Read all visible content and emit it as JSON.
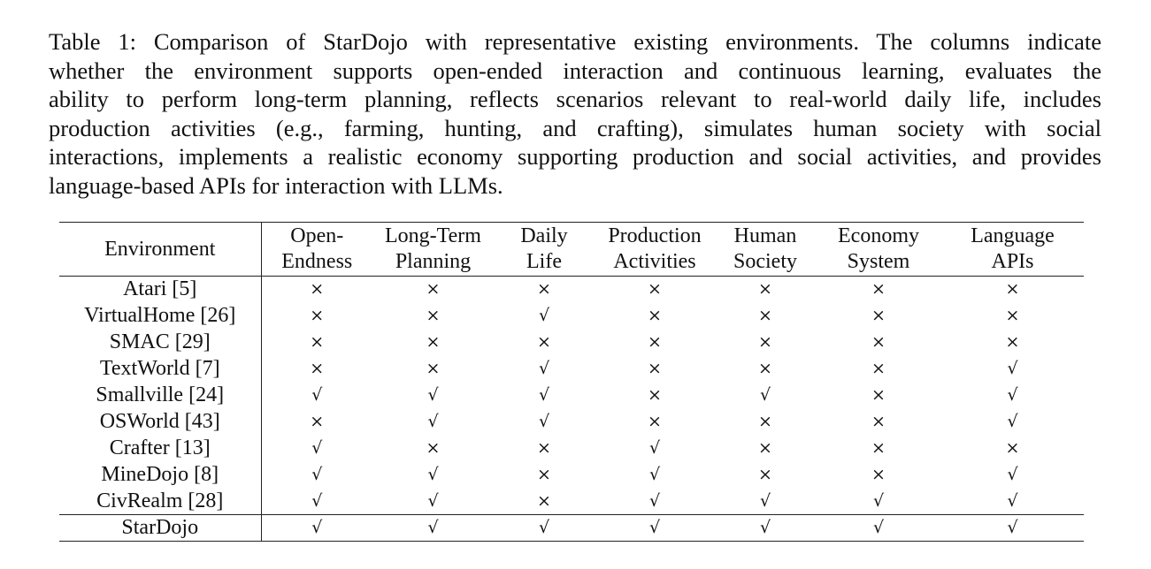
{
  "caption": {
    "lines": [
      "Table 1: Comparison of StarDojo with representative existing environments. The columns indicate",
      "whether the environment supports open-ended interaction and continuous learning, evaluates the",
      "ability to perform long-term planning, reflects scenarios relevant to real-world daily life, includes",
      "production activities (e.g., farming, hunting, and crafting), simulates human society with social",
      "interactions, implements a realistic economy supporting production and social activities, and provides",
      "language-based APIs for interaction with LLMs."
    ]
  },
  "table": {
    "header": {
      "environment": "Environment",
      "columns": [
        {
          "l1": "Open-",
          "l2": "Endness"
        },
        {
          "l1": "Long-Term",
          "l2": "Planning"
        },
        {
          "l1": "Daily",
          "l2": "Life"
        },
        {
          "l1": "Production",
          "l2": "Activities"
        },
        {
          "l1": "Human",
          "l2": "Society"
        },
        {
          "l1": "Economy",
          "l2": "System"
        },
        {
          "l1": "Language",
          "l2": "APIs"
        }
      ]
    },
    "rows": [
      {
        "env": "Atari [5]",
        "marks": [
          "×",
          "×",
          "×",
          "×",
          "×",
          "×",
          "×"
        ]
      },
      {
        "env": "VirtualHome [26]",
        "marks": [
          "×",
          "×",
          "√",
          "×",
          "×",
          "×",
          "×"
        ]
      },
      {
        "env": "SMAC [29]",
        "marks": [
          "×",
          "×",
          "×",
          "×",
          "×",
          "×",
          "×"
        ]
      },
      {
        "env": "TextWorld [7]",
        "marks": [
          "×",
          "×",
          "√",
          "×",
          "×",
          "×",
          "√"
        ]
      },
      {
        "env": "Smallville [24]",
        "marks": [
          "√",
          "√",
          "√",
          "×",
          "√",
          "×",
          "√"
        ]
      },
      {
        "env": "OSWorld [43]",
        "marks": [
          "×",
          "√",
          "√",
          "×",
          "×",
          "×",
          "√"
        ]
      },
      {
        "env": "Crafter [13]",
        "marks": [
          "√",
          "×",
          "×",
          "√",
          "×",
          "×",
          "×"
        ]
      },
      {
        "env": "MineDojo [8]",
        "marks": [
          "√",
          "√",
          "×",
          "√",
          "×",
          "×",
          "√"
        ]
      },
      {
        "env": "CivRealm [28]",
        "marks": [
          "√",
          "√",
          "×",
          "√",
          "√",
          "√",
          "√"
        ]
      }
    ],
    "final_row": {
      "env": "StarDojo",
      "marks": [
        "√",
        "√",
        "√",
        "√",
        "√",
        "√",
        "√"
      ]
    }
  }
}
